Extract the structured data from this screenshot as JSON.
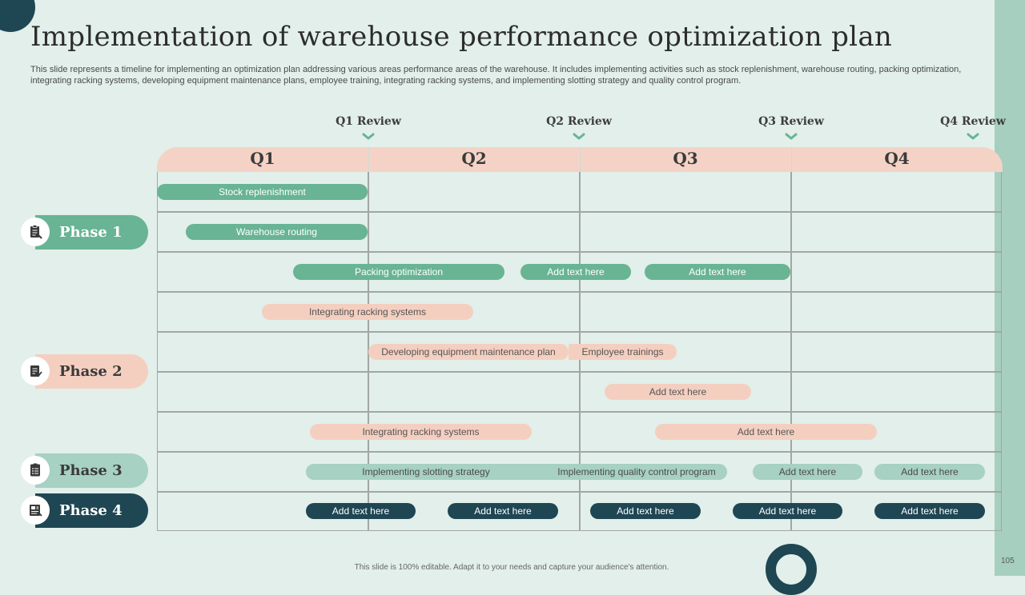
{
  "slide": {
    "title": "Implementation of warehouse performance optimization plan",
    "subtitle": "This slide represents a timeline for implementing an optimization plan addressing various areas performance areas of the warehouse. It includes implementing activities such as stock replenishment, warehouse routing, packing optimization, integrating racking systems, developing equipment maintenance plans, employee training, integrating racking systems, and implementing slotting strategy and quality control program.",
    "footer": "This slide is 100% editable. Adapt it to your needs and capture your audience's attention.",
    "page_number": "105"
  },
  "reviews": [
    "Q1 Review",
    "Q2 Review",
    "Q3 Review",
    "Q4 Review"
  ],
  "quarters": [
    "Q1",
    "Q2",
    "Q3",
    "Q4"
  ],
  "phases": [
    "Phase 1",
    "Phase 2",
    "Phase 3",
    "Phase 4"
  ],
  "tasks": {
    "row1": [
      "Stock replenishment"
    ],
    "row2": [
      "Warehouse routing"
    ],
    "row3": [
      "Packing optimization",
      "Add text here",
      "Add text here"
    ],
    "row4": [
      "Integrating racking systems"
    ],
    "row5": [
      "Developing equipment maintenance plan",
      "Employee trainings"
    ],
    "row6": [
      "Add text here"
    ],
    "row7": [
      "Integrating racking systems",
      "Add text here"
    ],
    "row8": [
      "Implementing slotting strategy",
      "Implementing quality control program",
      "Add text here",
      "Add text here"
    ],
    "row9": [
      "Add text here",
      "Add text here",
      "Add text here",
      "Add text here",
      "Add text here"
    ]
  },
  "colors": {
    "background": "#e2efea",
    "dark_teal": "#1f4653",
    "green": "#68b495",
    "light_green": "#a7d1c2",
    "peach": "#f4cfc0",
    "accent_strip": "#a6cfbf"
  },
  "icons": [
    "document-clipboard-icon",
    "checklist-icon",
    "task-list-icon",
    "report-icon",
    "chevron-down-icon"
  ]
}
